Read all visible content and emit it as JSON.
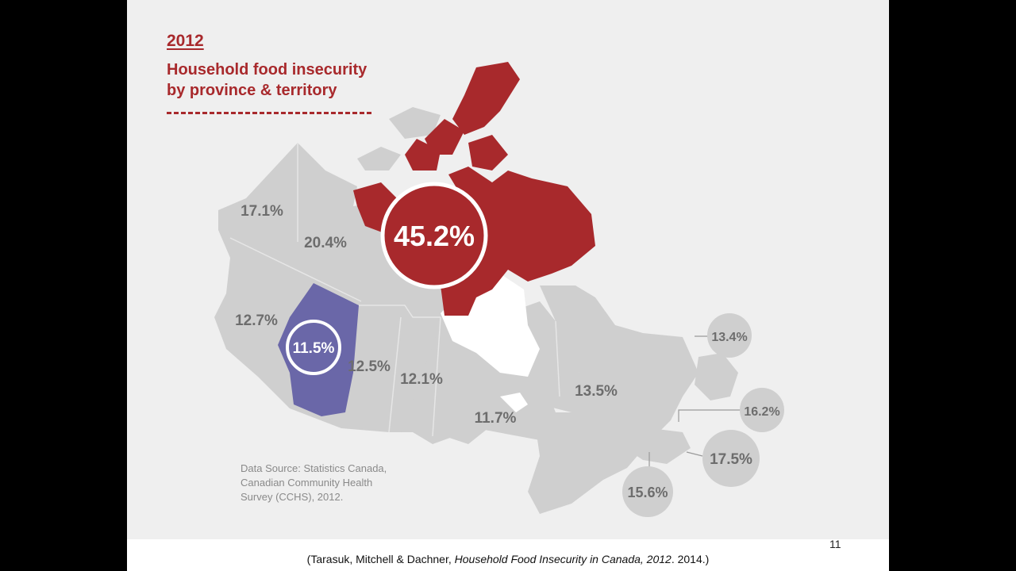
{
  "title": {
    "year": "2012",
    "line1": "Household food insecurity",
    "line2": "by province & territory"
  },
  "colors": {
    "accent_red": "#a8292c",
    "highlight_purple": "#6a67a8",
    "land_grey": "#cfcfcf",
    "label_grey": "#6d6d6d"
  },
  "regions": [
    {
      "name": "Yukon",
      "value": "17.1%"
    },
    {
      "name": "Northwest Territories",
      "value": "20.4%"
    },
    {
      "name": "Nunavut",
      "value": "45.2%"
    },
    {
      "name": "British Columbia",
      "value": "12.7%"
    },
    {
      "name": "Alberta",
      "value": "11.5%"
    },
    {
      "name": "Saskatchewan",
      "value": "12.5%"
    },
    {
      "name": "Manitoba",
      "value": "12.1%"
    },
    {
      "name": "Ontario",
      "value": "11.7%"
    },
    {
      "name": "Quebec",
      "value": "13.5%"
    },
    {
      "name": "Newfoundland and Labrador",
      "value": "13.4%"
    },
    {
      "name": "Prince Edward Island",
      "value": "16.2%"
    },
    {
      "name": "Nova Scotia",
      "value": "17.5%"
    },
    {
      "name": "New Brunswick",
      "value": "15.6%"
    }
  ],
  "source": {
    "line1": "Data Source: Statistics Canada,",
    "line2": "Canadian Community Health",
    "line3": "Survey (CCHS), 2012."
  },
  "slide_number": "11",
  "citation": {
    "prefix": "(Tarasuk, Mitchell & Dachner, ",
    "italic": "Household Food Insecurity in Canada, 2012",
    "suffix": ". 2014.)"
  }
}
